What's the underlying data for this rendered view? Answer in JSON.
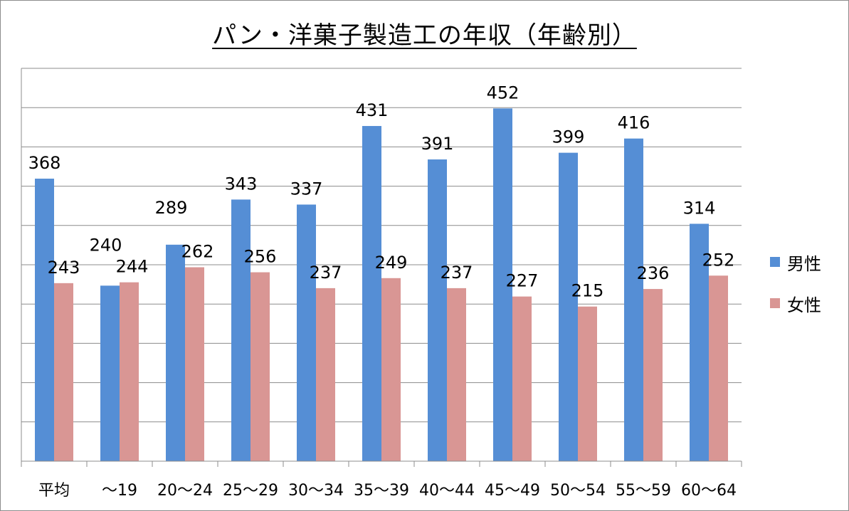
{
  "chart_data": {
    "type": "bar",
    "title": "パン・洋菓子製造工の年収（年齢別）",
    "categories": [
      "平均",
      "～19",
      "20～24",
      "25～29",
      "30～34",
      "35～39",
      "40～44",
      "45～49",
      "50～54",
      "55～59",
      "60～64"
    ],
    "series": [
      {
        "name": "男性",
        "color": "#558ED5",
        "values": [
          368,
          240,
          289,
          343,
          337,
          431,
          391,
          452,
          399,
          416,
          314
        ]
      },
      {
        "name": "女性",
        "color": "#D99694",
        "values": [
          243,
          244,
          262,
          256,
          237,
          249,
          237,
          227,
          215,
          236,
          252
        ]
      }
    ],
    "ylim": [
      30,
      500
    ],
    "grid": true,
    "legend": "right"
  }
}
